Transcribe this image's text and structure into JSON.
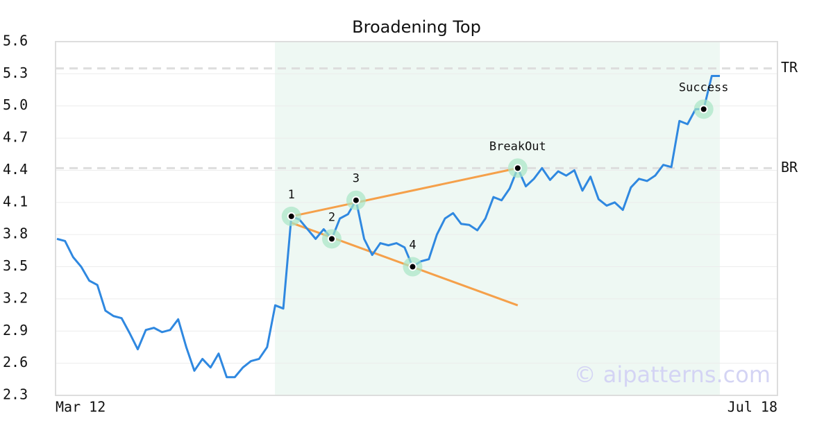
{
  "chart_data": {
    "type": "line",
    "title": "Broadening Top",
    "categories": [
      "Mar 12",
      null,
      null,
      null,
      null,
      null,
      null,
      null,
      null,
      null,
      null,
      null,
      null,
      null,
      null,
      null,
      null,
      null,
      null,
      null,
      null,
      null,
      null,
      null,
      null,
      null,
      null,
      null,
      null,
      null,
      null,
      null,
      null,
      null,
      null,
      null,
      null,
      null,
      null,
      null,
      null,
      null,
      null,
      null,
      null,
      null,
      null,
      null,
      null,
      null,
      null,
      null,
      null,
      null,
      null,
      null,
      null,
      null,
      null,
      null,
      null,
      null,
      null,
      null,
      null,
      null,
      null,
      null,
      null,
      null,
      null,
      null,
      null,
      null,
      null,
      null,
      null,
      null,
      null,
      null,
      null,
      null,
      "Jul 18"
    ],
    "series": [
      {
        "color": "#2f88e0",
        "values": [
          3.76,
          3.74,
          3.59,
          3.5,
          3.37,
          3.33,
          3.09,
          3.04,
          3.02,
          2.88,
          2.73,
          2.91,
          2.93,
          2.89,
          2.91,
          3.01,
          2.75,
          2.53,
          2.64,
          2.56,
          2.69,
          2.47,
          2.47,
          2.56,
          2.62,
          2.64,
          2.75,
          3.14,
          3.11,
          3.97,
          3.94,
          3.85,
          3.76,
          3.85,
          3.76,
          3.95,
          3.99,
          4.12,
          3.76,
          3.61,
          3.72,
          3.7,
          3.72,
          3.68,
          3.5,
          3.55,
          3.57,
          3.8,
          3.95,
          4.0,
          3.9,
          3.89,
          3.84,
          3.95,
          4.15,
          4.12,
          4.23,
          4.42,
          4.25,
          4.32,
          4.42,
          4.31,
          4.39,
          4.35,
          4.4,
          4.21,
          4.34,
          4.13,
          4.07,
          4.1,
          4.03,
          4.24,
          4.32,
          4.3,
          4.35,
          4.45,
          4.43,
          4.86,
          4.83,
          4.97,
          4.97,
          5.28,
          5.28
        ]
      }
    ],
    "ylim": [
      2.3,
      5.6
    ],
    "yticks": [
      2.3,
      2.6,
      2.9,
      3.2,
      3.5,
      3.8,
      4.1,
      4.4,
      4.7,
      {
        "value": 5,
        "label": "5.0"
      },
      5.3,
      5.6
    ],
    "grid": true,
    "levels": [
      {
        "label": "TR",
        "value": 5.35
      },
      {
        "label": "BR",
        "value": 4.42
      }
    ],
    "trendlines": [
      {
        "color": "#f5a04a",
        "x": [
          29,
          57
        ],
        "y": [
          3.97,
          4.42
        ]
      },
      {
        "color": "#f5a04a",
        "x": [
          29,
          57
        ],
        "y": [
          3.91,
          3.14
        ]
      }
    ],
    "annotations": [
      {
        "label": "1",
        "x": 29,
        "value": 3.97
      },
      {
        "label": "2",
        "x": 34,
        "value": 3.76
      },
      {
        "label": "3",
        "x": 37,
        "value": 4.12
      },
      {
        "label": "4",
        "x": 44,
        "value": 3.5
      },
      {
        "label": "BreakOut",
        "x": 57,
        "value": 4.42
      },
      {
        "label": "Success",
        "x": 80,
        "value": 4.97
      }
    ],
    "watermark": "© aipatterns.com"
  }
}
